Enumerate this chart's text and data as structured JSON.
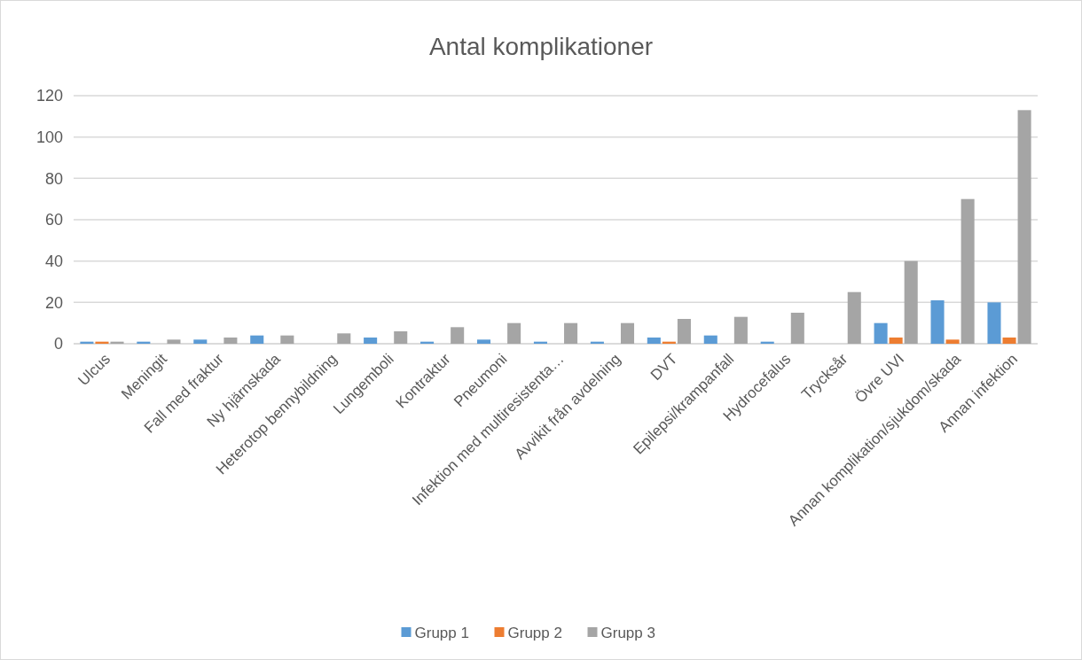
{
  "chart_data": {
    "type": "bar",
    "title": "Antal komplikationer",
    "categories": [
      "Ulcus",
      "Meningit",
      "Fall med fraktur",
      "Ny hjärnskada",
      "Heterotop bennybildning",
      "Lungemboli",
      "Kontraktur",
      "Pneumoni",
      "Infektion med multiresistenta…",
      "Avvikit från avdelning",
      "DVT",
      "Epilepsi/krampanfall",
      "Hydrocefalus",
      "Trycksår",
      "Övre UVI",
      "Annan komplikation/sjukdom/skada",
      "Annan infektion"
    ],
    "series": [
      {
        "name": "Grupp 1",
        "color": "#5b9bd5",
        "values": [
          1,
          1,
          2,
          4,
          0,
          3,
          1,
          2,
          1,
          1,
          3,
          4,
          1,
          0,
          10,
          21,
          20
        ]
      },
      {
        "name": "Grupp 2",
        "color": "#ed7d31",
        "values": [
          1,
          0,
          0,
          0,
          0,
          0,
          0,
          0,
          0,
          0,
          1,
          0,
          0,
          0,
          3,
          2,
          3
        ]
      },
      {
        "name": "Grupp 3",
        "color": "#a5a5a5",
        "values": [
          1,
          2,
          3,
          4,
          5,
          6,
          8,
          10,
          10,
          10,
          12,
          13,
          15,
          25,
          40,
          70,
          113
        ]
      }
    ],
    "ylim": [
      0,
      120
    ],
    "yticks": [
      0,
      20,
      40,
      60,
      80,
      100,
      120
    ],
    "grid": "y",
    "legend": "bottom"
  }
}
